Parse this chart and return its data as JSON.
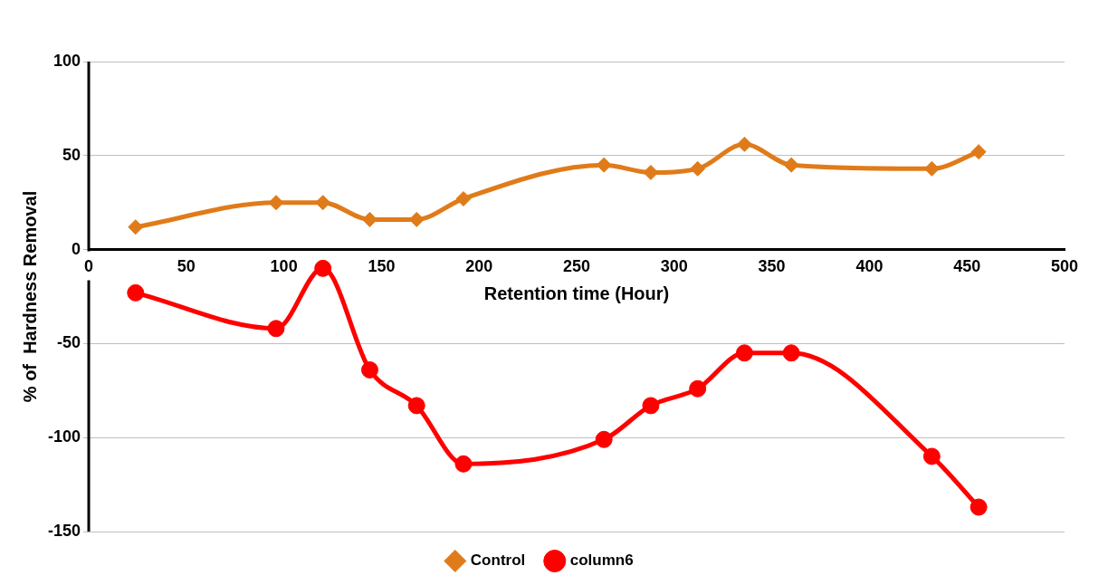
{
  "chart_data": {
    "type": "line",
    "xlabel": "Retention time (Hour)",
    "ylabel": "% of  Hardness Removal",
    "x": [
      24,
      96,
      120,
      144,
      168,
      192,
      264,
      288,
      312,
      336,
      360,
      432,
      456
    ],
    "xlim": [
      0,
      500
    ],
    "xticks": [
      0,
      50,
      100,
      150,
      200,
      250,
      300,
      350,
      400,
      450,
      500
    ],
    "ylim": [
      -150,
      100
    ],
    "yticks": [
      -150,
      -100,
      -50,
      0,
      50,
      100
    ],
    "grid": "y",
    "legend": "bottom",
    "series": [
      {
        "name": "Control",
        "color": "#e07b1a",
        "marker": "diamond",
        "values": [
          12,
          25,
          25,
          16,
          16,
          27,
          45,
          41,
          43,
          56,
          45,
          43,
          52
        ]
      },
      {
        "name": "column6",
        "color": "#ff0000",
        "marker": "circle",
        "values": [
          -23,
          -42,
          -10,
          -64,
          -83,
          -114,
          -101,
          -83,
          -74,
          -55,
          -55,
          -110,
          -137
        ]
      }
    ]
  }
}
